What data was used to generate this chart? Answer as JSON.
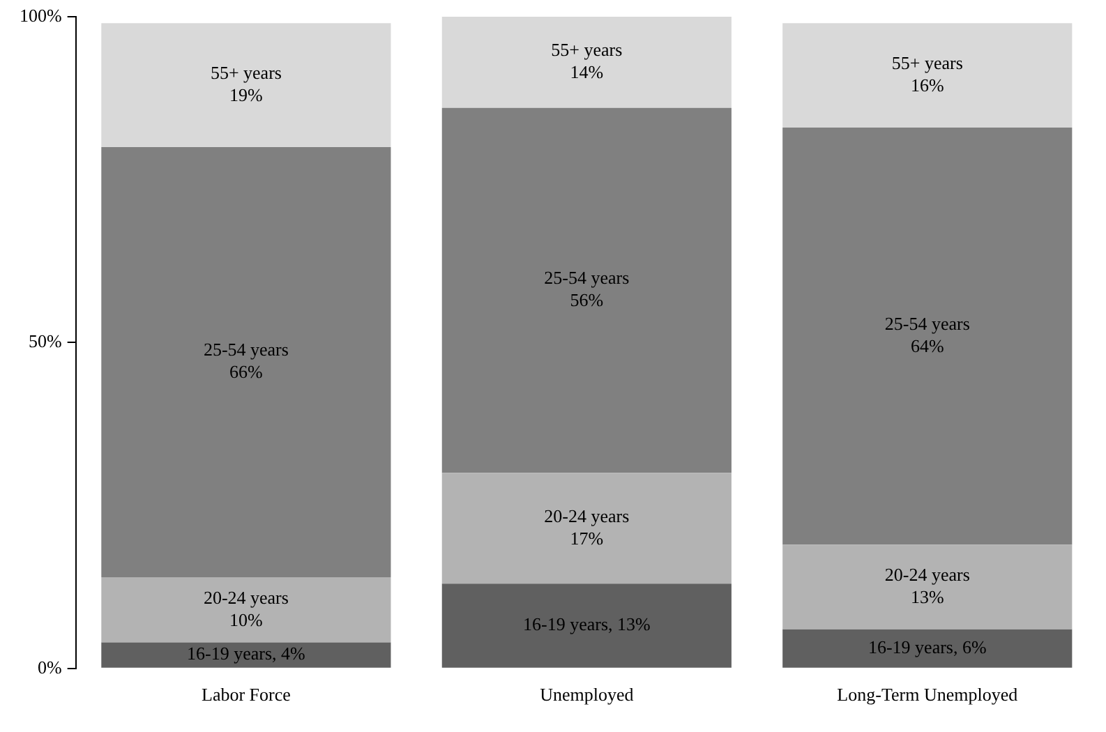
{
  "chart_data": {
    "type": "bar",
    "stacked": true,
    "categories": [
      "Labor Force",
      "Unemployed",
      "Long-Term Unemployed"
    ],
    "series": [
      {
        "color": "#606060",
        "values": [
          4,
          13,
          6
        ],
        "value_labels": [
          "16-19 years, 4%",
          "16-19 years, 13%",
          "16-19 years, 6%"
        ]
      },
      {
        "name": "20-24 years",
        "color": "#b3b3b3",
        "values": [
          10,
          17,
          13
        ],
        "value_labels": [
          "10%",
          "17%",
          "13%"
        ]
      },
      {
        "name": "25-54 years",
        "color": "#808080",
        "values": [
          66,
          56,
          64
        ],
        "value_labels": [
          "66%",
          "56%",
          "64%"
        ]
      },
      {
        "name": "55+ years",
        "color": "#d9d9d9",
        "values": [
          19,
          14,
          16
        ],
        "value_labels": [
          "19%",
          "14%",
          "16%"
        ]
      }
    ],
    "ylim": [
      0,
      100
    ],
    "yticks": [
      {
        "value": 0,
        "label": "0%"
      },
      {
        "value": 50,
        "label": "50%"
      },
      {
        "value": 100,
        "label": "100%"
      }
    ],
    "grid": false,
    "legend": false
  }
}
